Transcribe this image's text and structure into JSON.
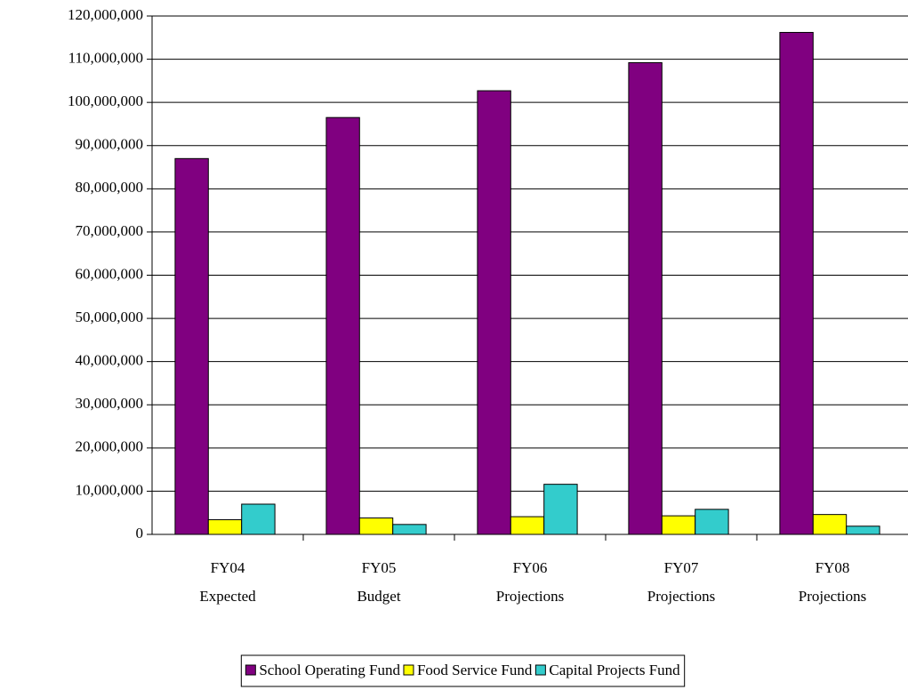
{
  "chart_data": {
    "type": "bar",
    "categories": [
      [
        "FY04",
        "Expected"
      ],
      [
        "FY05",
        "Budget"
      ],
      [
        "FY06",
        "Projections"
      ],
      [
        "FY07",
        "Projections"
      ],
      [
        "FY08",
        "Projections"
      ]
    ],
    "series": [
      {
        "name": "School Operating Fund",
        "color": "#800080",
        "values": [
          87000000,
          96500000,
          102700000,
          109200000,
          116200000
        ]
      },
      {
        "name": "Food Service Fund",
        "color": "#ffff00",
        "values": [
          3400000,
          3800000,
          4100000,
          4300000,
          4600000
        ]
      },
      {
        "name": "Capital Projects Fund",
        "color": "#33cccc",
        "values": [
          7000000,
          2300000,
          11600000,
          5800000,
          1900000
        ]
      }
    ],
    "ylim": [
      0,
      120000000
    ],
    "yticks": [
      0,
      {
        "value": 10000000,
        "label": "10,000,000"
      },
      {
        "value": 20000000,
        "label": "20,000,000"
      },
      {
        "value": 30000000,
        "label": "30,000,000"
      },
      {
        "value": 40000000,
        "label": "40,000,000"
      },
      {
        "value": 50000000,
        "label": "50,000,000"
      },
      {
        "value": 60000000,
        "label": "60,000,000"
      },
      {
        "value": 70000000,
        "label": "70,000,000"
      },
      {
        "value": 80000000,
        "label": "80,000,000"
      },
      {
        "value": 90000000,
        "label": "90,000,000"
      },
      {
        "value": 100000000,
        "label": "100,000,000"
      },
      {
        "value": 110000000,
        "label": "110,000,000"
      },
      {
        "value": 120000000,
        "label": "120,000,000"
      }
    ],
    "grid": true,
    "legend": "bottom"
  }
}
